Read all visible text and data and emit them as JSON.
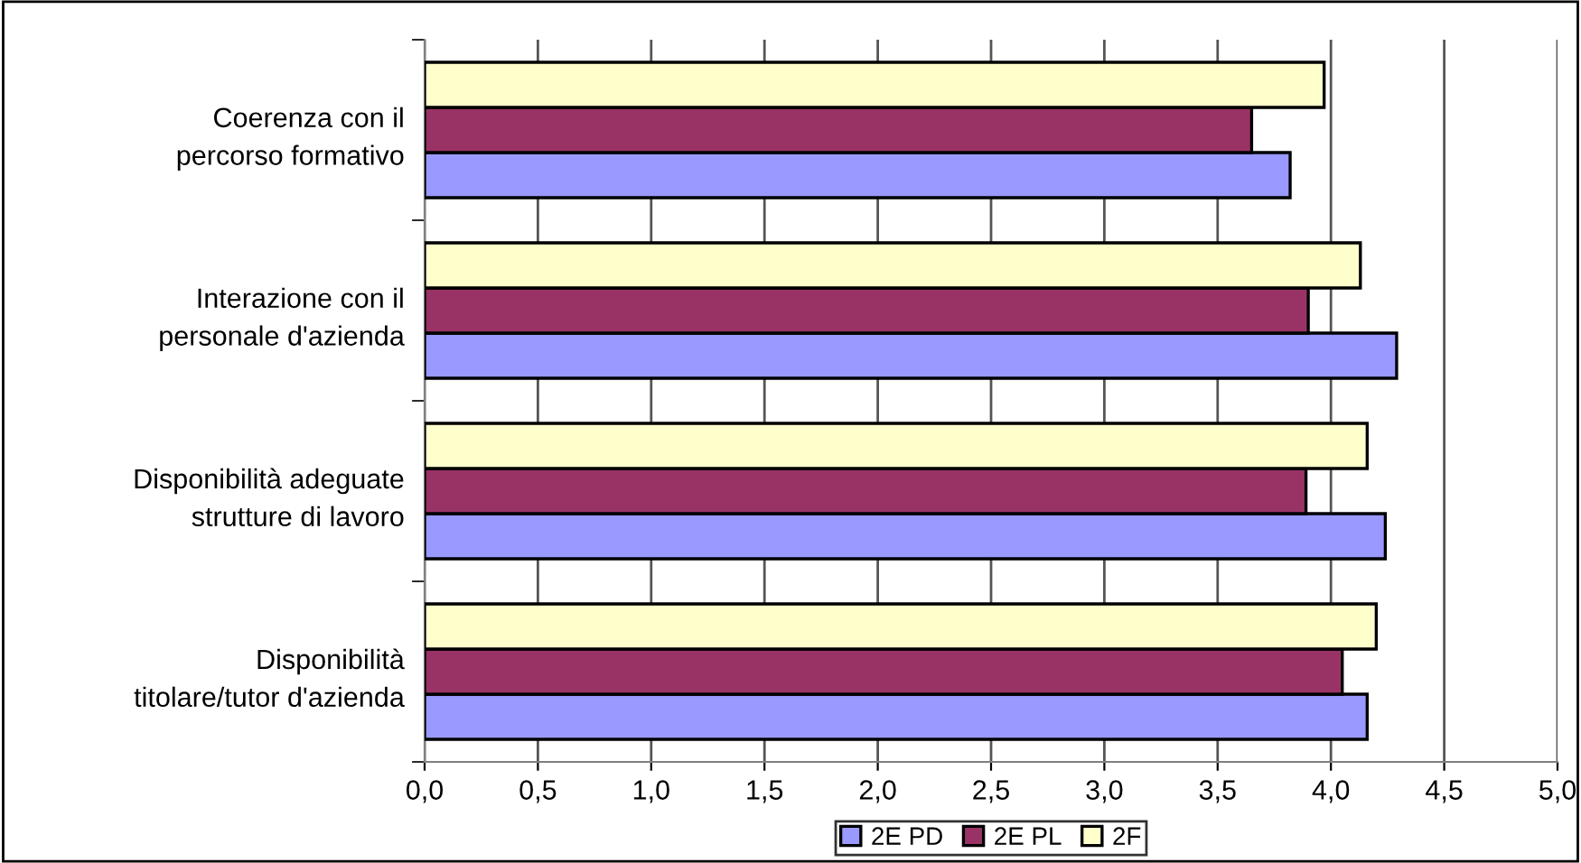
{
  "chart_data": {
    "type": "bar",
    "orientation": "horizontal",
    "categories": [
      "Coerenza con il\npercorso formativo",
      "Interazione con il\npersonale d'azienda",
      "Disponibilità adeguate\nstrutture di lavoro",
      "Disponibilità\ntitolare/tutor d'azienda"
    ],
    "series": [
      {
        "name": "2E PD",
        "color": "#9999ff",
        "values": [
          3.82,
          4.29,
          4.24,
          4.16
        ]
      },
      {
        "name": "2E PL",
        "color": "#993366",
        "values": [
          3.65,
          3.9,
          3.89,
          4.05
        ]
      },
      {
        "name": "2F",
        "color": "#ffffcc",
        "values": [
          3.97,
          4.13,
          4.16,
          4.2
        ]
      }
    ],
    "xlim": [
      0,
      5
    ],
    "xticks": [
      {
        "value": 0,
        "label": "0,0"
      },
      {
        "value": 0.5,
        "label": "0,5"
      },
      {
        "value": 1,
        "label": "1,0"
      },
      {
        "value": 1.5,
        "label": "1,5"
      },
      {
        "value": 2,
        "label": "2,0"
      },
      {
        "value": 2.5,
        "label": "2,5"
      },
      {
        "value": 3,
        "label": "3,0"
      },
      {
        "value": 3.5,
        "label": "3,5"
      },
      {
        "value": 4,
        "label": "4,0"
      },
      {
        "value": 4.5,
        "label": "4,5"
      },
      {
        "value": 5,
        "label": "5,0"
      }
    ],
    "grid": "x",
    "legend": "bottom"
  }
}
